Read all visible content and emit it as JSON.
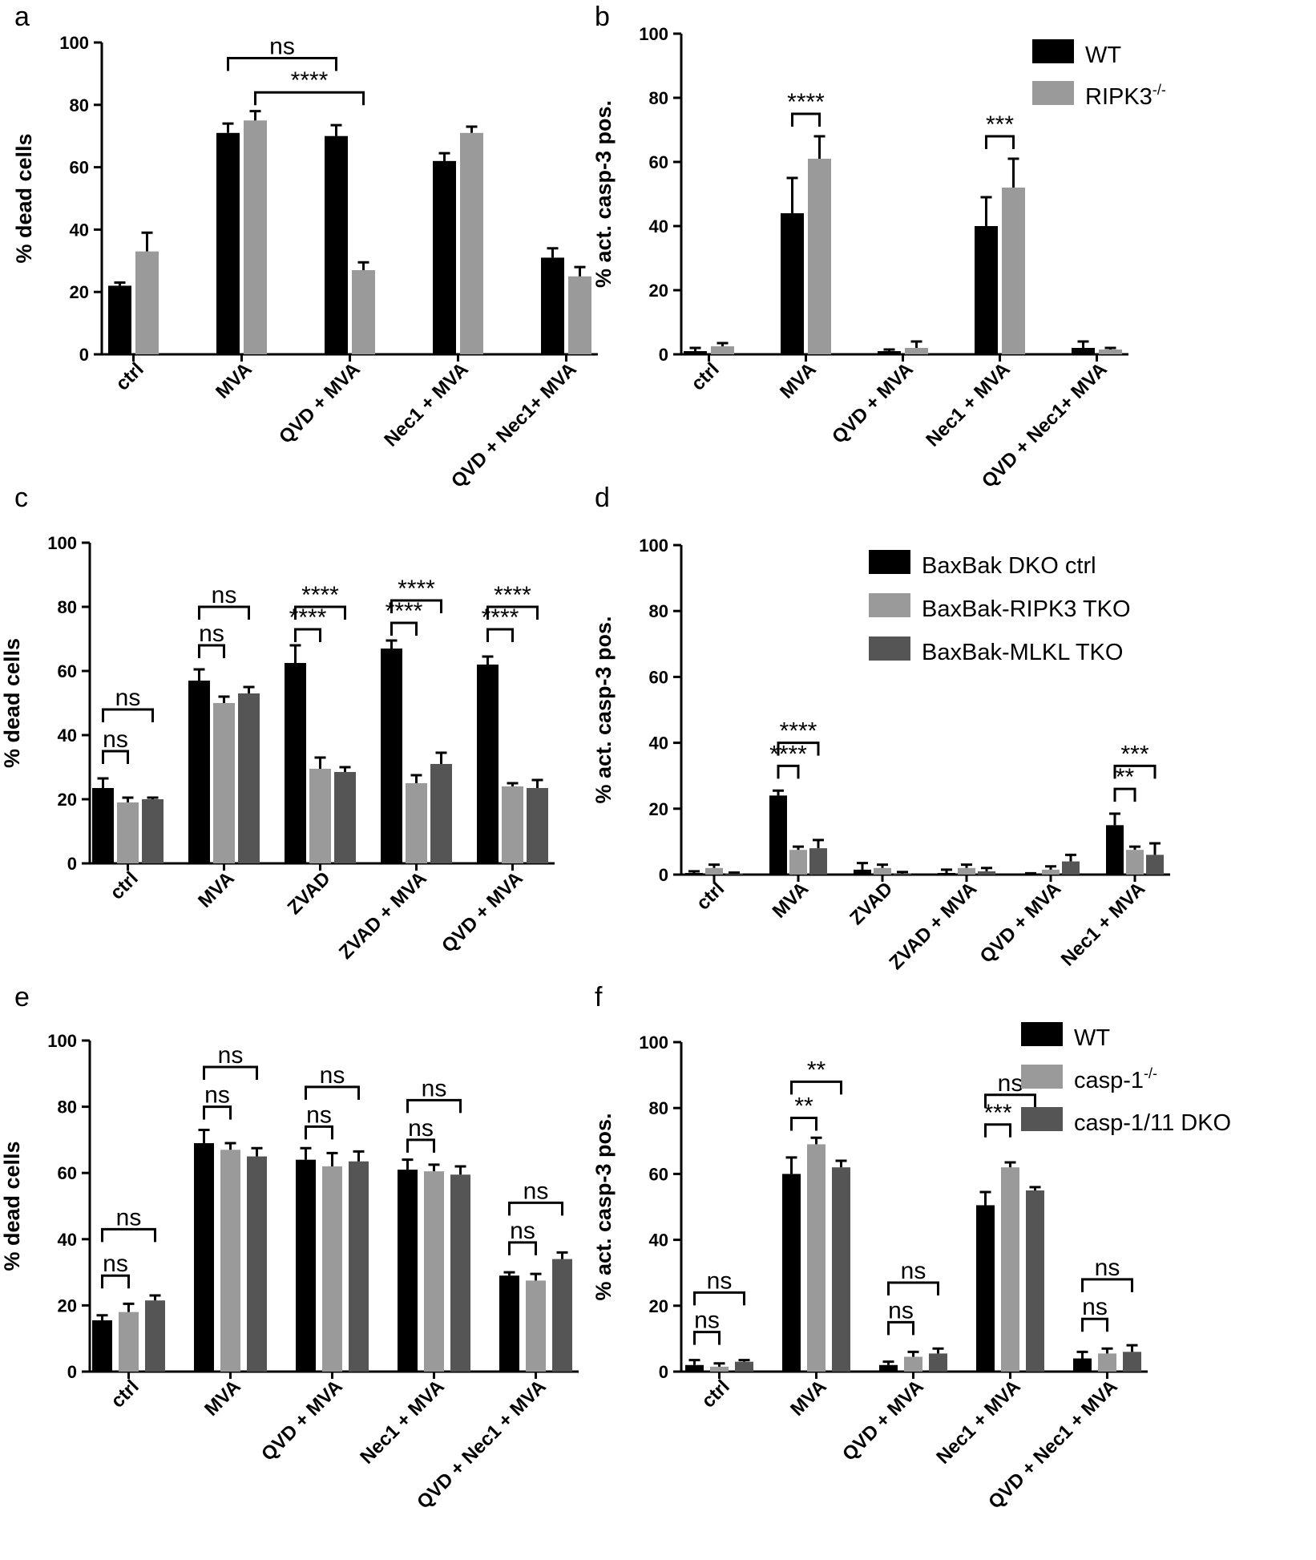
{
  "chart_data": [
    {
      "panel": "a",
      "type": "bar",
      "ylabel": "% dead cells",
      "ylim": [
        0,
        100
      ],
      "yticks": [
        0,
        20,
        40,
        60,
        80,
        100
      ],
      "categories": [
        "ctrl",
        "MVA",
        "QVD + MVA",
        "Nec1 + MVA",
        "QVD + Nec1+ MVA"
      ],
      "series": [
        {
          "name": "WT",
          "color": "#000000",
          "values": [
            22,
            71,
            70,
            62,
            31
          ],
          "errors": [
            1,
            3,
            3.5,
            2.5,
            3
          ]
        },
        {
          "name": "RIPK3-/-",
          "color": "#9a9a9a",
          "values": [
            33,
            75,
            27,
            71,
            25
          ],
          "errors": [
            6,
            3,
            2.5,
            2,
            3
          ]
        }
      ],
      "annotations": [
        {
          "text": "ns",
          "from": [
            1,
            0
          ],
          "to": [
            2,
            0
          ],
          "level": 95
        },
        {
          "text": "****",
          "from": [
            1,
            1
          ],
          "to": [
            2,
            1
          ],
          "level": 84
        }
      ]
    },
    {
      "panel": "b",
      "type": "bar",
      "ylabel": "% act. casp-3 pos.",
      "ylim": [
        0,
        100
      ],
      "yticks": [
        0,
        20,
        40,
        60,
        80,
        100
      ],
      "categories": [
        "ctrl",
        "MVA",
        "QVD + MVA",
        "Nec1 + MVA",
        "QVD + Nec1+ MVA"
      ],
      "series": [
        {
          "name": "WT",
          "color": "#000000",
          "values": [
            1,
            44,
            1,
            40,
            2
          ],
          "errors": [
            1,
            11,
            0.5,
            9,
            2
          ]
        },
        {
          "name": "RIPK3",
          "name_sup": "-/-",
          "color": "#9a9a9a",
          "values": [
            2.5,
            61,
            2,
            52,
            1.5
          ],
          "errors": [
            1,
            7,
            2,
            9,
            0.5
          ]
        }
      ],
      "legend": [
        {
          "label": "WT",
          "color": "#000000"
        },
        {
          "label": "RIPK3",
          "sup": "-/-",
          "color": "#9a9a9a"
        }
      ],
      "annotations": [
        {
          "text": "****",
          "from": [
            1,
            0
          ],
          "to": [
            1,
            1
          ],
          "level": 75
        },
        {
          "text": "***",
          "from": [
            3,
            0
          ],
          "to": [
            3,
            1
          ],
          "level": 68
        }
      ]
    },
    {
      "panel": "c",
      "type": "bar",
      "ylabel": "% dead cells",
      "ylim": [
        0,
        100
      ],
      "yticks": [
        0,
        20,
        40,
        60,
        80,
        100
      ],
      "categories": [
        "ctrl",
        "MVA",
        "ZVAD",
        "ZVAD + MVA",
        "QVD + MVA"
      ],
      "series": [
        {
          "name": "BaxBak DKO ctrl",
          "color": "#000000",
          "values": [
            23.5,
            57,
            62.5,
            67,
            62
          ],
          "errors": [
            3,
            3.5,
            5.5,
            2.5,
            2.5
          ]
        },
        {
          "name": "BaxBak-RIPK3 TKO",
          "color": "#9a9a9a",
          "values": [
            19,
            50,
            29.5,
            25,
            24
          ],
          "errors": [
            1.5,
            2,
            3.5,
            2.5,
            1
          ]
        },
        {
          "name": "BaxBak-MLKL TKO",
          "color": "#555555",
          "values": [
            20,
            53,
            28.5,
            31,
            23.5
          ],
          "errors": [
            0.5,
            2,
            1.5,
            3.5,
            2.5
          ]
        }
      ],
      "annotations": [
        {
          "text": "ns",
          "from": [
            0,
            0
          ],
          "to": [
            0,
            2
          ],
          "level": 48
        },
        {
          "text": "ns",
          "from": [
            0,
            0
          ],
          "to": [
            0,
            1
          ],
          "level": 35
        },
        {
          "text": "ns",
          "from": [
            1,
            0
          ],
          "to": [
            1,
            2
          ],
          "level": 80
        },
        {
          "text": "ns",
          "from": [
            1,
            0
          ],
          "to": [
            1,
            1
          ],
          "level": 68
        },
        {
          "text": "****",
          "from": [
            2,
            0
          ],
          "to": [
            2,
            2
          ],
          "level": 80
        },
        {
          "text": "****",
          "from": [
            2,
            0
          ],
          "to": [
            2,
            1
          ],
          "level": 73
        },
        {
          "text": "****",
          "from": [
            3,
            0
          ],
          "to": [
            3,
            2
          ],
          "level": 82
        },
        {
          "text": "****",
          "from": [
            3,
            0
          ],
          "to": [
            3,
            1
          ],
          "level": 75
        },
        {
          "text": "****",
          "from": [
            4,
            0
          ],
          "to": [
            4,
            2
          ],
          "level": 80
        },
        {
          "text": "****",
          "from": [
            4,
            0
          ],
          "to": [
            4,
            1
          ],
          "level": 73
        }
      ]
    },
    {
      "panel": "d",
      "type": "bar",
      "ylabel": "% act. casp-3 pos.",
      "ylim": [
        0,
        100
      ],
      "yticks": [
        0,
        20,
        40,
        60,
        80,
        100
      ],
      "categories": [
        "ctrl",
        "MVA",
        "ZVAD",
        "ZVAD + MVA",
        "QVD + MVA",
        "Nec1 + MVA"
      ],
      "series": [
        {
          "name": "BaxBak DKO ctrl",
          "color": "#000000",
          "values": [
            0.5,
            24,
            1.5,
            0.5,
            0.2,
            15
          ],
          "errors": [
            0.5,
            1.5,
            2,
            1,
            0.2,
            3.5
          ]
        },
        {
          "name": "BaxBak-RIPK3 TKO",
          "color": "#9a9a9a",
          "values": [
            2,
            7.5,
            2,
            2,
            1.5,
            7.5
          ],
          "errors": [
            1,
            1,
            1,
            1,
            1,
            1
          ]
        },
        {
          "name": "BaxBak-MLKL TKO",
          "color": "#555555",
          "values": [
            0.3,
            8,
            0.3,
            1,
            4,
            6
          ],
          "errors": [
            0.3,
            2.5,
            0.5,
            1,
            2,
            3.5
          ]
        }
      ],
      "legend": [
        {
          "label": "BaxBak DKO ctrl",
          "color": "#000000"
        },
        {
          "label": "BaxBak-RIPK3 TKO",
          "color": "#9a9a9a"
        },
        {
          "label": "BaxBak-MLKL TKO",
          "color": "#555555"
        }
      ],
      "annotations": [
        {
          "text": "****",
          "from": [
            1,
            0
          ],
          "to": [
            1,
            2
          ],
          "level": 40
        },
        {
          "text": "****",
          "from": [
            1,
            0
          ],
          "to": [
            1,
            1
          ],
          "level": 33
        },
        {
          "text": "***",
          "from": [
            5,
            0
          ],
          "to": [
            5,
            2
          ],
          "level": 33
        },
        {
          "text": "**",
          "from": [
            5,
            0
          ],
          "to": [
            5,
            1
          ],
          "level": 26
        }
      ]
    },
    {
      "panel": "e",
      "type": "bar",
      "ylabel": "% dead cells",
      "ylim": [
        0,
        100
      ],
      "yticks": [
        0,
        20,
        40,
        60,
        80,
        100
      ],
      "categories": [
        "ctrl",
        "MVA",
        "QVD + MVA",
        "Nec1 + MVA",
        "QVD + Nec1 + MVA"
      ],
      "series": [
        {
          "name": "WT",
          "color": "#000000",
          "values": [
            15.5,
            69,
            64,
            61,
            29
          ],
          "errors": [
            1.5,
            4,
            3.5,
            3,
            1
          ]
        },
        {
          "name": "casp-1-/-",
          "color": "#9a9a9a",
          "values": [
            18,
            67,
            62,
            60.5,
            27.5
          ],
          "errors": [
            2.5,
            2,
            4,
            2,
            2
          ]
        },
        {
          "name": "casp-1/11 DKO",
          "color": "#555555",
          "values": [
            21.5,
            65,
            63.5,
            59.5,
            34
          ],
          "errors": [
            1.5,
            2.5,
            3,
            2.5,
            2
          ]
        }
      ],
      "annotations": [
        {
          "text": "ns",
          "from": [
            0,
            0
          ],
          "to": [
            0,
            2
          ],
          "level": 43
        },
        {
          "text": "ns",
          "from": [
            0,
            0
          ],
          "to": [
            0,
            1
          ],
          "level": 29
        },
        {
          "text": "ns",
          "from": [
            1,
            0
          ],
          "to": [
            1,
            2
          ],
          "level": 92
        },
        {
          "text": "ns",
          "from": [
            1,
            0
          ],
          "to": [
            1,
            1
          ],
          "level": 80
        },
        {
          "text": "ns",
          "from": [
            2,
            0
          ],
          "to": [
            2,
            2
          ],
          "level": 86
        },
        {
          "text": "ns",
          "from": [
            2,
            0
          ],
          "to": [
            2,
            1
          ],
          "level": 74
        },
        {
          "text": "ns",
          "from": [
            3,
            0
          ],
          "to": [
            3,
            2
          ],
          "level": 82
        },
        {
          "text": "ns",
          "from": [
            3,
            0
          ],
          "to": [
            3,
            1
          ],
          "level": 70
        },
        {
          "text": "ns",
          "from": [
            4,
            0
          ],
          "to": [
            4,
            2
          ],
          "level": 51
        },
        {
          "text": "ns",
          "from": [
            4,
            0
          ],
          "to": [
            4,
            1
          ],
          "level": 39
        }
      ]
    },
    {
      "panel": "f",
      "type": "bar",
      "ylabel": "% act. casp-3 pos.",
      "ylim": [
        0,
        100
      ],
      "yticks": [
        0,
        20,
        40,
        60,
        80,
        100
      ],
      "categories": [
        "ctrl",
        "MVA",
        "QVD + MVA",
        "Nec1 + MVA",
        "QVD + Nec1 + MVA"
      ],
      "series": [
        {
          "name": "WT",
          "color": "#000000",
          "values": [
            2,
            60,
            2,
            50.5,
            4
          ],
          "errors": [
            1.5,
            5,
            1,
            4,
            2
          ]
        },
        {
          "name": "casp-1",
          "name_sup": "-/-",
          "color": "#9a9a9a",
          "values": [
            1.5,
            69,
            4.5,
            62,
            5.5
          ],
          "errors": [
            1,
            2,
            1.5,
            1.5,
            1.5
          ]
        },
        {
          "name": "casp-1/11 DKO",
          "color": "#555555",
          "values": [
            3,
            62,
            5.5,
            55,
            6
          ],
          "errors": [
            0.5,
            2,
            1.5,
            1,
            2
          ]
        }
      ],
      "legend": [
        {
          "label": "WT",
          "color": "#000000"
        },
        {
          "label": "casp-1",
          "sup": "-/-",
          "color": "#9a9a9a"
        },
        {
          "label": "casp-1/11 DKO",
          "color": "#555555"
        }
      ],
      "annotations": [
        {
          "text": "ns",
          "from": [
            0,
            0
          ],
          "to": [
            0,
            2
          ],
          "level": 24
        },
        {
          "text": "ns",
          "from": [
            0,
            0
          ],
          "to": [
            0,
            1
          ],
          "level": 12
        },
        {
          "text": "**",
          "from": [
            1,
            0
          ],
          "to": [
            1,
            2
          ],
          "level": 88
        },
        {
          "text": "**",
          "from": [
            1,
            0
          ],
          "to": [
            1,
            1
          ],
          "level": 77
        },
        {
          "text": "ns",
          "from": [
            2,
            0
          ],
          "to": [
            2,
            2
          ],
          "level": 27
        },
        {
          "text": "ns",
          "from": [
            2,
            0
          ],
          "to": [
            2,
            1
          ],
          "level": 15
        },
        {
          "text": "ns",
          "from": [
            3,
            0
          ],
          "to": [
            3,
            2
          ],
          "level": 84
        },
        {
          "text": "***",
          "from": [
            3,
            0
          ],
          "to": [
            3,
            1
          ],
          "level": 75
        },
        {
          "text": "ns",
          "from": [
            4,
            0
          ],
          "to": [
            4,
            2
          ],
          "level": 28
        },
        {
          "text": "ns",
          "from": [
            4,
            0
          ],
          "to": [
            4,
            1
          ],
          "level": 16
        }
      ]
    }
  ]
}
